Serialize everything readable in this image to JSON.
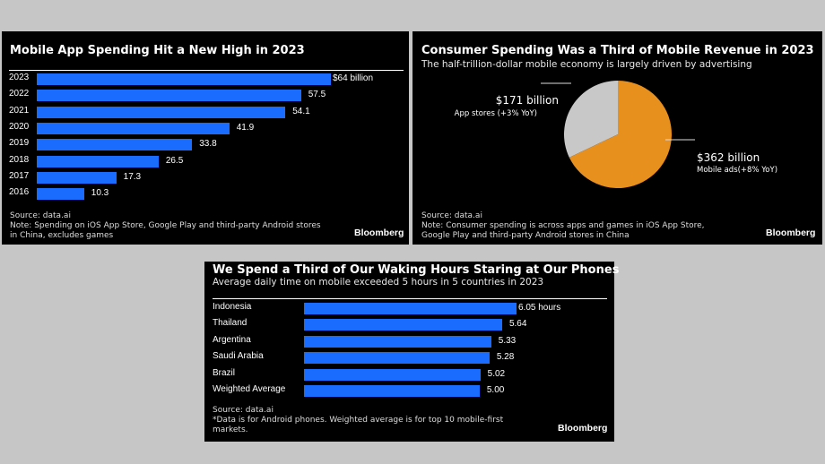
{
  "background_color": "#c6c6c6",
  "chart_data": [
    {
      "type": "bar",
      "orientation": "horizontal",
      "title": "Mobile App Spending Hit a New High in 2023",
      "categories": [
        "2023",
        "2022",
        "2021",
        "2020",
        "2019",
        "2018",
        "2017",
        "2016"
      ],
      "values": [
        64,
        57.5,
        54.1,
        41.9,
        33.8,
        26.5,
        17.3,
        10.3
      ],
      "value_labels": [
        "$64 billion",
        "57.5",
        "54.1",
        "41.9",
        "33.8",
        "26.5",
        "17.3",
        "10.3"
      ],
      "bar_color": "#1a6cff",
      "source": "Source: data.ai",
      "note": "Note: Spending on iOS App Store, Google Play and third-party Android stores in China, excludes games",
      "brand": "Bloomberg"
    },
    {
      "type": "pie",
      "title": "Consumer Spending Was a Third of Mobile Revenue in 2023",
      "subtitle": "The half-trillion-dollar mobile economy is largely driven by advertising",
      "slices": [
        {
          "value": 171,
          "value_label": "$171 billion",
          "label": "App stores (+3% YoY)",
          "color": "#c8c8c8"
        },
        {
          "value": 362,
          "value_label": "$362 billion",
          "label": "Mobile ads(+8% YoY)",
          "color": "#e8901e"
        }
      ],
      "source": "Source: data.ai",
      "note": "Note: Consumer spending is across apps and games in iOS App Store, Google Play and third-party Android stores in China",
      "brand": "Bloomberg"
    },
    {
      "type": "bar",
      "orientation": "horizontal",
      "title": "We Spend a Third of Our Waking Hours Staring at Our Phones",
      "subtitle": "Average daily time on mobile exceeded 5 hours in 5 countries in 2023",
      "categories": [
        "Indonesia",
        "Thailand",
        "Argentina",
        "Saudi Arabia",
        "Brazil",
        "Weighted Average"
      ],
      "values": [
        6.05,
        5.64,
        5.33,
        5.28,
        5.02,
        5.0
      ],
      "value_labels": [
        "6.05 hours",
        "5.64",
        "5.33",
        "5.28",
        "5.02",
        "5.00"
      ],
      "bar_color": "#1a6cff",
      "source": "Source: data.ai",
      "note": "*Data is for Android phones. Weighted average is for top 10 mobile-first markets.",
      "brand": "Bloomberg"
    }
  ]
}
